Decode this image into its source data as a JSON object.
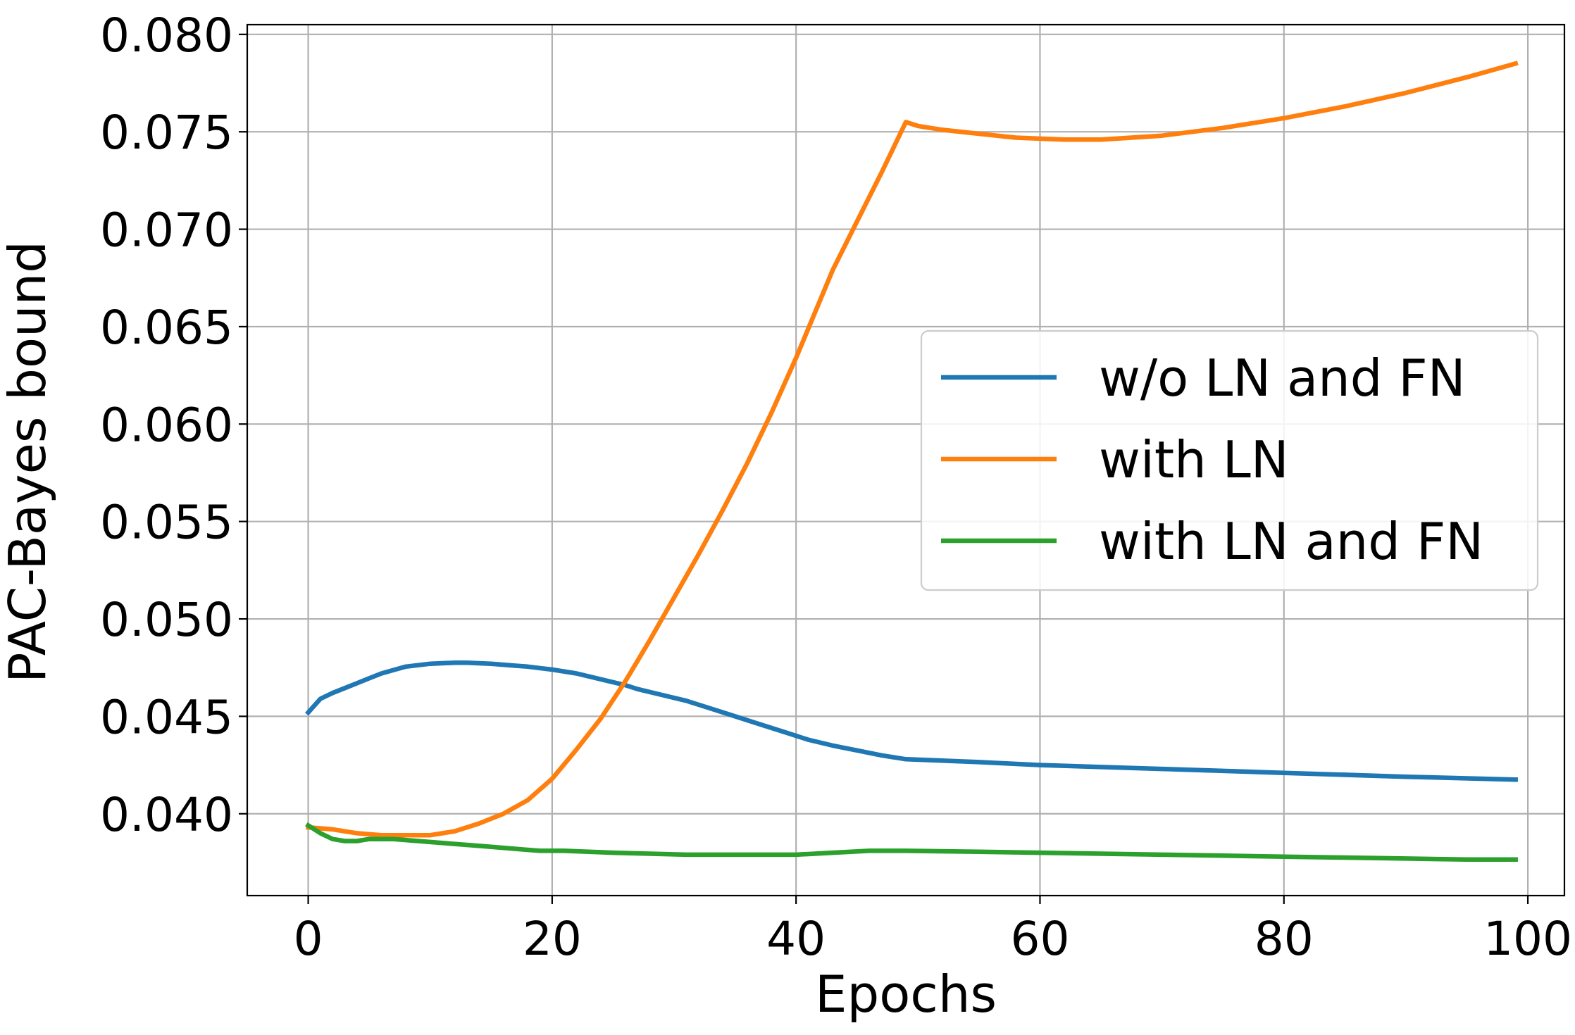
{
  "chart_data": {
    "type": "line",
    "title": "",
    "xlabel": "Epochs",
    "ylabel": "PAC-Bayes bound",
    "xlim": [
      -5,
      103
    ],
    "ylim": [
      0.0358,
      0.0805
    ],
    "xticks": [
      0,
      20,
      40,
      60,
      80,
      100
    ],
    "xtick_labels": [
      "0",
      "20",
      "40",
      "60",
      "80",
      "100"
    ],
    "yticks": [
      0.04,
      0.045,
      0.05,
      0.055,
      0.06,
      0.065,
      0.07,
      0.075,
      0.08
    ],
    "ytick_labels": [
      "0.040",
      "0.045",
      "0.050",
      "0.055",
      "0.060",
      "0.065",
      "0.070",
      "0.075",
      "0.080"
    ],
    "grid": true,
    "legend_position": "center-right",
    "series": [
      {
        "name": "w/o LN and FN",
        "color": "#1f77b4",
        "x": [
          0,
          1,
          2,
          3,
          4,
          5,
          6,
          8,
          10,
          12,
          13,
          15,
          17,
          18,
          20,
          22,
          24,
          26,
          27,
          29,
          31,
          33,
          35,
          37,
          39,
          41,
          43,
          45,
          47,
          49,
          55,
          60,
          70,
          80,
          90,
          99
        ],
        "y": [
          0.0452,
          0.0459,
          0.0462,
          0.04645,
          0.0467,
          0.04695,
          0.0472,
          0.04755,
          0.0477,
          0.04775,
          0.04775,
          0.0477,
          0.0476,
          0.04755,
          0.0474,
          0.0472,
          0.0469,
          0.0466,
          0.0464,
          0.0461,
          0.0458,
          0.0454,
          0.045,
          0.0446,
          0.0442,
          0.0438,
          0.0435,
          0.04325,
          0.043,
          0.0428,
          0.04265,
          0.0425,
          0.0423,
          0.0421,
          0.0419,
          0.04175
        ]
      },
      {
        "name": "with LN",
        "color": "#ff7f0e",
        "x": [
          0,
          2,
          4,
          6,
          8,
          10,
          12,
          14,
          16,
          18,
          20,
          22,
          24,
          26,
          28,
          30,
          32,
          34,
          36,
          38,
          40,
          42,
          43,
          45,
          47,
          49,
          50,
          52,
          55,
          58,
          62,
          65,
          70,
          75,
          80,
          85,
          90,
          95,
          99
        ],
        "y": [
          0.0393,
          0.0392,
          0.039,
          0.0389,
          0.0389,
          0.0389,
          0.0391,
          0.0395,
          0.04,
          0.0407,
          0.0418,
          0.0433,
          0.0449,
          0.0468,
          0.0489,
          0.0511,
          0.0533,
          0.0556,
          0.058,
          0.0606,
          0.0634,
          0.0664,
          0.0679,
          0.0704,
          0.0729,
          0.0755,
          0.0753,
          0.0751,
          0.0749,
          0.0747,
          0.0746,
          0.0746,
          0.0748,
          0.0752,
          0.0757,
          0.0763,
          0.077,
          0.0778,
          0.0785
        ]
      },
      {
        "name": "with LN and FN",
        "color": "#2ca02c",
        "x": [
          0,
          1,
          2,
          3,
          4,
          5,
          7,
          9,
          11,
          13,
          15,
          17,
          19,
          21,
          23,
          25,
          28,
          31,
          34,
          37,
          40,
          43,
          46,
          49,
          55,
          60,
          65,
          70,
          75,
          80,
          85,
          90,
          95,
          99
        ],
        "y": [
          0.0394,
          0.039,
          0.0387,
          0.0386,
          0.0386,
          0.0387,
          0.0387,
          0.0386,
          0.0385,
          0.0384,
          0.0383,
          0.0382,
          0.0381,
          0.0381,
          0.03805,
          0.038,
          0.03795,
          0.0379,
          0.0379,
          0.0379,
          0.0379,
          0.038,
          0.0381,
          0.0381,
          0.03805,
          0.038,
          0.03795,
          0.0379,
          0.03785,
          0.0378,
          0.03775,
          0.0377,
          0.03765,
          0.03765
        ]
      }
    ]
  }
}
